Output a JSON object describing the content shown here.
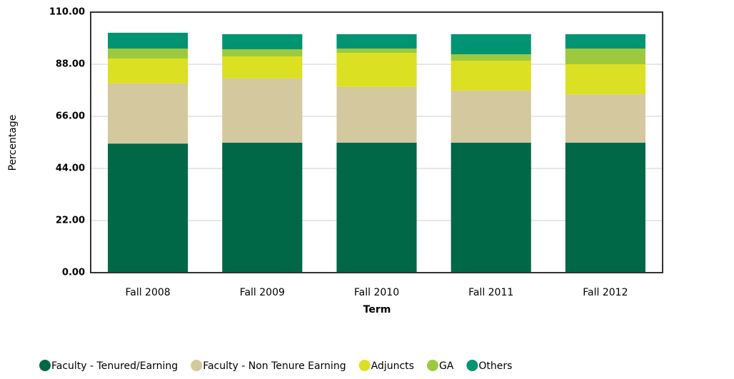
{
  "chart_data": {
    "type": "stacked_bar",
    "xlabel": "Term",
    "ylabel": "Percentage",
    "categories": [
      "Fall 2008",
      "Fall 2009",
      "Fall 2010",
      "Fall 2011",
      "Fall 2012"
    ],
    "series": [
      {
        "name": "Faculty - Tenured/Earning",
        "color": "#006747",
        "values": [
          54.5,
          54.9,
          54.9,
          54.9,
          54.9
        ]
      },
      {
        "name": "Faculty - Non Tenure Earning",
        "color": "#d4c89e",
        "values": [
          25.4,
          27.1,
          23.5,
          22.0,
          20.4
        ]
      },
      {
        "name": "Adjuncts",
        "color": "#dce022",
        "values": [
          10.5,
          9.3,
          14.4,
          12.6,
          12.7
        ]
      },
      {
        "name": "GA",
        "color": "#9dc93e",
        "values": [
          4.2,
          3.0,
          1.8,
          2.7,
          6.6
        ]
      },
      {
        "name": "Others",
        "color": "#009473",
        "values": [
          6.7,
          6.4,
          6.1,
          8.5,
          6.1
        ]
      }
    ],
    "ylim": [
      0,
      110
    ],
    "yticks": [
      {
        "value": 0,
        "label": "0.00"
      },
      {
        "value": 22,
        "label": "22.00"
      },
      {
        "value": 44,
        "label": "44.00"
      },
      {
        "value": 66,
        "label": "66.00"
      },
      {
        "value": 88,
        "label": "88.00"
      },
      {
        "value": 110,
        "label": "110.00"
      }
    ],
    "grid": true
  }
}
